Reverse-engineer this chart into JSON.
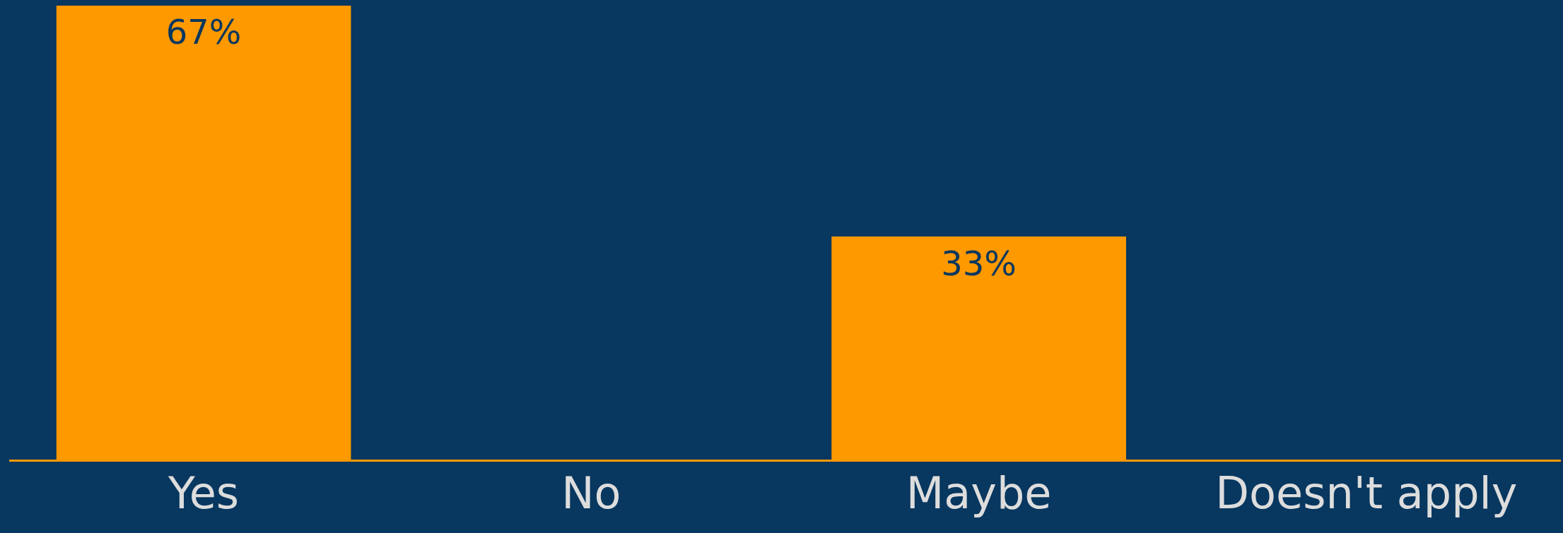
{
  "chart_data": {
    "type": "bar",
    "categories": [
      "Yes",
      "No",
      "Maybe",
      "Doesn't apply"
    ],
    "values": [
      67,
      0,
      33,
      0
    ],
    "value_labels": [
      "67%",
      null,
      "33%",
      null
    ],
    "color": "#ff9900",
    "grid": false,
    "legend": false
  }
}
